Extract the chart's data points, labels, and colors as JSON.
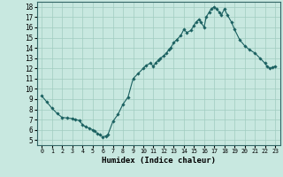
{
  "title": "",
  "xlabel": "Humidex (Indice chaleur)",
  "background_color": "#c8e8e0",
  "grid_color": "#a0ccc0",
  "line_color": "#1a6060",
  "marker_color": "#1a6060",
  "xlim": [
    -0.5,
    23.5
  ],
  "ylim": [
    4.5,
    18.5
  ],
  "yticks": [
    5,
    6,
    7,
    8,
    9,
    10,
    11,
    12,
    13,
    14,
    15,
    16,
    17,
    18
  ],
  "xticks": [
    0,
    1,
    2,
    3,
    4,
    5,
    6,
    7,
    8,
    9,
    10,
    11,
    12,
    13,
    14,
    15,
    16,
    17,
    18,
    19,
    20,
    21,
    22,
    23
  ],
  "x": [
    0,
    0.5,
    1,
    1.5,
    2,
    2.5,
    3,
    3.3,
    3.7,
    4,
    4.3,
    4.7,
    5,
    5.2,
    5.5,
    5.7,
    6,
    6.3,
    6.5,
    7,
    7.5,
    8,
    8.5,
    9,
    9.5,
    10,
    10.3,
    10.7,
    11,
    11.2,
    11.5,
    11.7,
    12,
    12.3,
    12.5,
    12.7,
    13,
    13.3,
    13.7,
    14,
    14.3,
    14.7,
    15,
    15.2,
    15.5,
    15.7,
    16,
    16.2,
    16.5,
    16.7,
    17,
    17.2,
    17.5,
    17.7,
    18,
    18.3,
    18.7,
    19,
    19.5,
    20,
    20.5,
    21,
    21.5,
    22,
    22.2,
    22.5,
    22.7,
    23
  ],
  "y": [
    9.3,
    8.7,
    8.1,
    7.6,
    7.2,
    7.15,
    7.1,
    7.0,
    6.9,
    6.5,
    6.3,
    6.15,
    6.0,
    5.85,
    5.65,
    5.5,
    5.3,
    5.4,
    5.5,
    6.8,
    7.5,
    8.5,
    9.2,
    11.0,
    11.5,
    12.0,
    12.3,
    12.5,
    12.2,
    12.5,
    12.8,
    13.0,
    13.2,
    13.5,
    13.8,
    14.0,
    14.5,
    14.8,
    15.2,
    15.8,
    15.5,
    15.7,
    16.2,
    16.5,
    16.8,
    16.5,
    16.0,
    17.0,
    17.5,
    17.8,
    18.0,
    17.8,
    17.5,
    17.2,
    17.8,
    17.2,
    16.5,
    15.8,
    14.8,
    14.2,
    13.8,
    13.5,
    13.0,
    12.5,
    12.2,
    12.0,
    12.1,
    12.2
  ]
}
